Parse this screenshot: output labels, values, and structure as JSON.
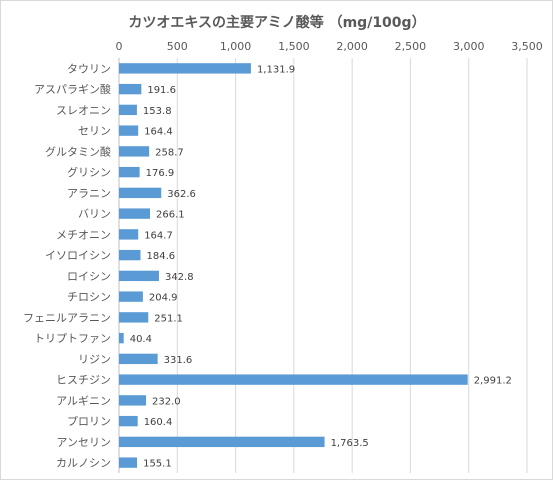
{
  "chart_data": {
    "type": "bar",
    "orientation": "horizontal",
    "title": "カツオエキスの主要アミノ酸等 （mg/100g）",
    "xlabel": "",
    "ylabel": "",
    "xlim": [
      0,
      3500
    ],
    "tick_values": [
      0,
      500,
      1000,
      1500,
      2000,
      2500,
      3000,
      3500
    ],
    "tick_labels": [
      "0",
      "500",
      "1,000",
      "1,500",
      "2,000",
      "2,500",
      "3,000",
      "3,500"
    ],
    "axis_position": "top",
    "grid": true,
    "legend": false,
    "bar_color": "#5B9BD5",
    "categories": [
      "タウリン",
      "アスパラギン酸",
      "スレオニン",
      "セリン",
      "グルタミン酸",
      "グリシン",
      "アラニン",
      "バリン",
      "メチオニン",
      "イソロイシン",
      "ロイシン",
      "チロシン",
      "フェニルアラニン",
      "トリプトファン",
      "リジン",
      "ヒスチジン",
      "アルギニン",
      "プロリン",
      "アンセリン",
      "カルノシン"
    ],
    "values": [
      1131.9,
      191.6,
      153.8,
      164.4,
      258.7,
      176.9,
      362.6,
      266.1,
      164.7,
      184.6,
      342.8,
      204.9,
      251.1,
      40.4,
      331.6,
      2991.2,
      232.0,
      160.4,
      1763.5,
      155.1
    ],
    "value_labels": [
      "1,131.9",
      "191.6",
      "153.8",
      "164.4",
      "258.7",
      "176.9",
      "362.6",
      "266.1",
      "164.7",
      "184.6",
      "342.8",
      "204.9",
      "251.1",
      "40.4",
      "331.6",
      "2,991.2",
      "232.0",
      "160.4",
      "1,763.5",
      "155.1"
    ]
  }
}
